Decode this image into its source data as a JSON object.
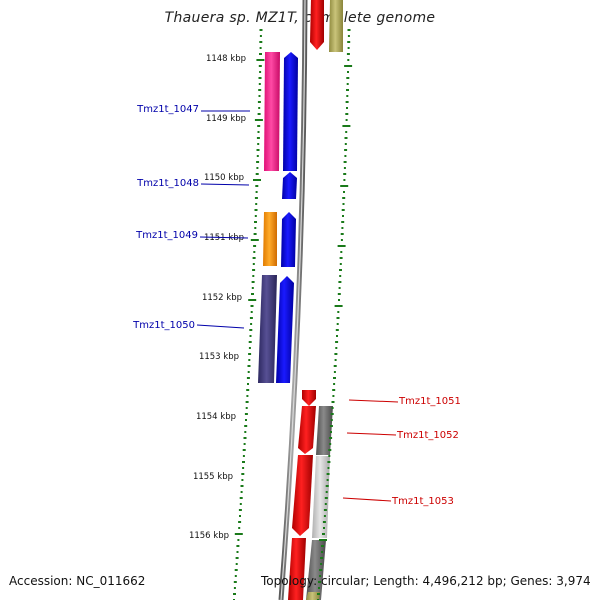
{
  "title": "Thauera sp. MZ1T, complete genome",
  "footer": {
    "accession": "Accession: NC_011662",
    "topology": "Topology: circular; Length: 4,496,212 bp; Genes: 3,974"
  },
  "kbp_labels": [
    {
      "label": "1148 kbp",
      "kbp": 1148
    },
    {
      "label": "1149 kbp",
      "kbp": 1149
    },
    {
      "label": "1150 kbp",
      "kbp": 1150
    },
    {
      "label": "1151 kbp",
      "kbp": 1151
    },
    {
      "label": "1152 kbp",
      "kbp": 1152
    },
    {
      "label": "1153 kbp",
      "kbp": 1153
    },
    {
      "label": "1154 kbp",
      "kbp": 1154
    },
    {
      "label": "1155 kbp",
      "kbp": 1155
    },
    {
      "label": "1156 kbp",
      "kbp": 1156
    }
  ],
  "genes": [
    {
      "label": "Tmz1t_1047",
      "color": "#0000aa",
      "strand": "left"
    },
    {
      "label": "Tmz1t_1048",
      "color": "#0000aa",
      "strand": "left"
    },
    {
      "label": "Tmz1t_1049",
      "color": "#0000aa",
      "strand": "left"
    },
    {
      "label": "Tmz1t_1050",
      "color": "#0000aa",
      "strand": "left"
    },
    {
      "label": "Tmz1t_1051",
      "color": "#cc0000",
      "strand": "right"
    },
    {
      "label": "Tmz1t_1052",
      "color": "#cc0000",
      "strand": "right"
    },
    {
      "label": "Tmz1t_1053",
      "color": "#cc0000",
      "strand": "right"
    }
  ],
  "colors": {
    "forward_strand": "#ff0000",
    "reverse_strand": "#0000ff",
    "cog_pink": "#ff3399",
    "cog_orange": "#ff9900",
    "cog_purple": "#3f3a7a",
    "cog_olive": "#b3ad5c",
    "cog_gray": "#707070",
    "cog_lightgray": "#c8c8c8",
    "backbone": "#7a7a7a",
    "tick_green": "#1a7a1a"
  }
}
